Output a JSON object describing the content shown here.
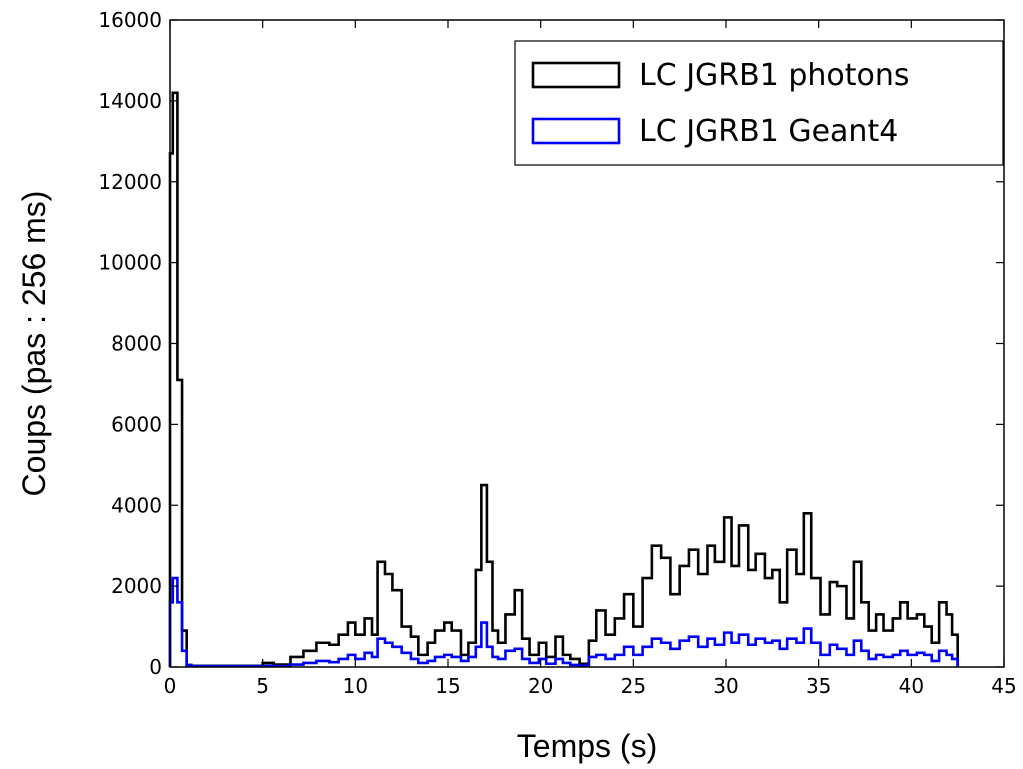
{
  "chart_data": {
    "type": "line",
    "step": true,
    "title": "",
    "xlabel": "Temps (s)",
    "ylabel": "Coups (pas : 256 ms)",
    "xlim": [
      0,
      45
    ],
    "ylim": [
      0,
      16000
    ],
    "xticks": [
      0,
      5,
      10,
      15,
      20,
      25,
      30,
      35,
      40,
      45
    ],
    "yticks": [
      0,
      2000,
      4000,
      6000,
      8000,
      10000,
      12000,
      14000,
      16000
    ],
    "grid": false,
    "legend_position": "top-right",
    "series": [
      {
        "name": "LC JGRB1 photons",
        "color": "#000000",
        "x": [
          0.0,
          0.15,
          0.4,
          0.65,
          0.9,
          1.15,
          2.5,
          5.0,
          5.6,
          6.5,
          7.2,
          7.9,
          8.6,
          9.1,
          9.6,
          10.0,
          10.5,
          10.9,
          11.2,
          11.6,
          12.0,
          12.5,
          13.0,
          13.4,
          13.9,
          14.3,
          14.8,
          15.2,
          15.7,
          16.1,
          16.5,
          16.8,
          17.1,
          17.4,
          17.7,
          18.1,
          18.6,
          19.0,
          19.4,
          19.9,
          20.3,
          20.8,
          21.2,
          21.6,
          22.1,
          22.6,
          23.0,
          23.5,
          24.0,
          24.5,
          25.0,
          25.5,
          26.0,
          26.5,
          27.0,
          27.5,
          28.0,
          28.5,
          29.0,
          29.4,
          29.9,
          30.3,
          30.7,
          31.2,
          31.6,
          32.1,
          32.5,
          32.9,
          33.3,
          33.8,
          34.2,
          34.6,
          35.1,
          35.6,
          36.0,
          36.5,
          36.9,
          37.3,
          37.7,
          38.1,
          38.5,
          39.0,
          39.4,
          39.8,
          40.3,
          40.7,
          41.1,
          41.5,
          41.9,
          42.2
        ],
        "y": [
          12700,
          14200,
          7100,
          900,
          50,
          30,
          30,
          100,
          60,
          250,
          400,
          600,
          550,
          800,
          1100,
          800,
          1200,
          800,
          2600,
          2300,
          1900,
          1000,
          750,
          300,
          600,
          900,
          1100,
          900,
          300,
          600,
          2400,
          4500,
          2600,
          900,
          600,
          1300,
          1900,
          700,
          300,
          600,
          250,
          750,
          300,
          200,
          80,
          650,
          1400,
          800,
          1200,
          1800,
          1000,
          2200,
          3000,
          2700,
          1800,
          2500,
          2900,
          2300,
          3000,
          2600,
          3700,
          2500,
          3500,
          2400,
          2800,
          2200,
          2400,
          1600,
          2900,
          2300,
          3800,
          2200,
          1300,
          2100,
          2000,
          1200,
          2600,
          1600,
          900,
          1300,
          900,
          1200,
          1600,
          1200,
          1300,
          1000,
          600,
          1600,
          1300,
          800
        ]
      },
      {
        "name": "LC JGRB1 Geant4",
        "color": "#0000ff",
        "x": [
          0.0,
          0.15,
          0.4,
          0.65,
          0.9,
          1.15,
          2.5,
          5.0,
          5.6,
          6.5,
          7.2,
          7.9,
          8.6,
          9.1,
          9.6,
          10.0,
          10.5,
          10.9,
          11.2,
          11.6,
          12.0,
          12.5,
          13.0,
          13.4,
          13.9,
          14.3,
          14.8,
          15.2,
          15.7,
          16.1,
          16.5,
          16.8,
          17.1,
          17.4,
          17.7,
          18.1,
          18.6,
          19.0,
          19.4,
          19.9,
          20.3,
          20.8,
          21.2,
          21.6,
          22.1,
          22.6,
          23.0,
          23.5,
          24.0,
          24.5,
          25.0,
          25.5,
          26.0,
          26.5,
          27.0,
          27.5,
          28.0,
          28.5,
          29.0,
          29.4,
          29.9,
          30.3,
          30.7,
          31.2,
          31.6,
          32.1,
          32.5,
          32.9,
          33.3,
          33.8,
          34.2,
          34.6,
          35.1,
          35.6,
          36.0,
          36.5,
          36.9,
          37.3,
          37.7,
          38.1,
          38.5,
          39.0,
          39.4,
          39.8,
          40.3,
          40.7,
          41.1,
          41.5,
          41.9,
          42.2
        ],
        "y": [
          1600,
          2200,
          1600,
          400,
          40,
          20,
          20,
          30,
          20,
          60,
          100,
          150,
          120,
          200,
          300,
          200,
          350,
          250,
          700,
          600,
          500,
          350,
          200,
          100,
          150,
          250,
          300,
          250,
          150,
          250,
          500,
          1100,
          500,
          250,
          200,
          400,
          450,
          200,
          100,
          200,
          80,
          200,
          100,
          50,
          30,
          250,
          300,
          200,
          300,
          500,
          300,
          500,
          700,
          600,
          450,
          650,
          750,
          500,
          700,
          550,
          850,
          600,
          800,
          550,
          700,
          600,
          650,
          450,
          700,
          600,
          950,
          600,
          300,
          550,
          450,
          300,
          650,
          400,
          200,
          300,
          250,
          300,
          400,
          300,
          350,
          300,
          150,
          400,
          300,
          200
        ]
      }
    ]
  }
}
